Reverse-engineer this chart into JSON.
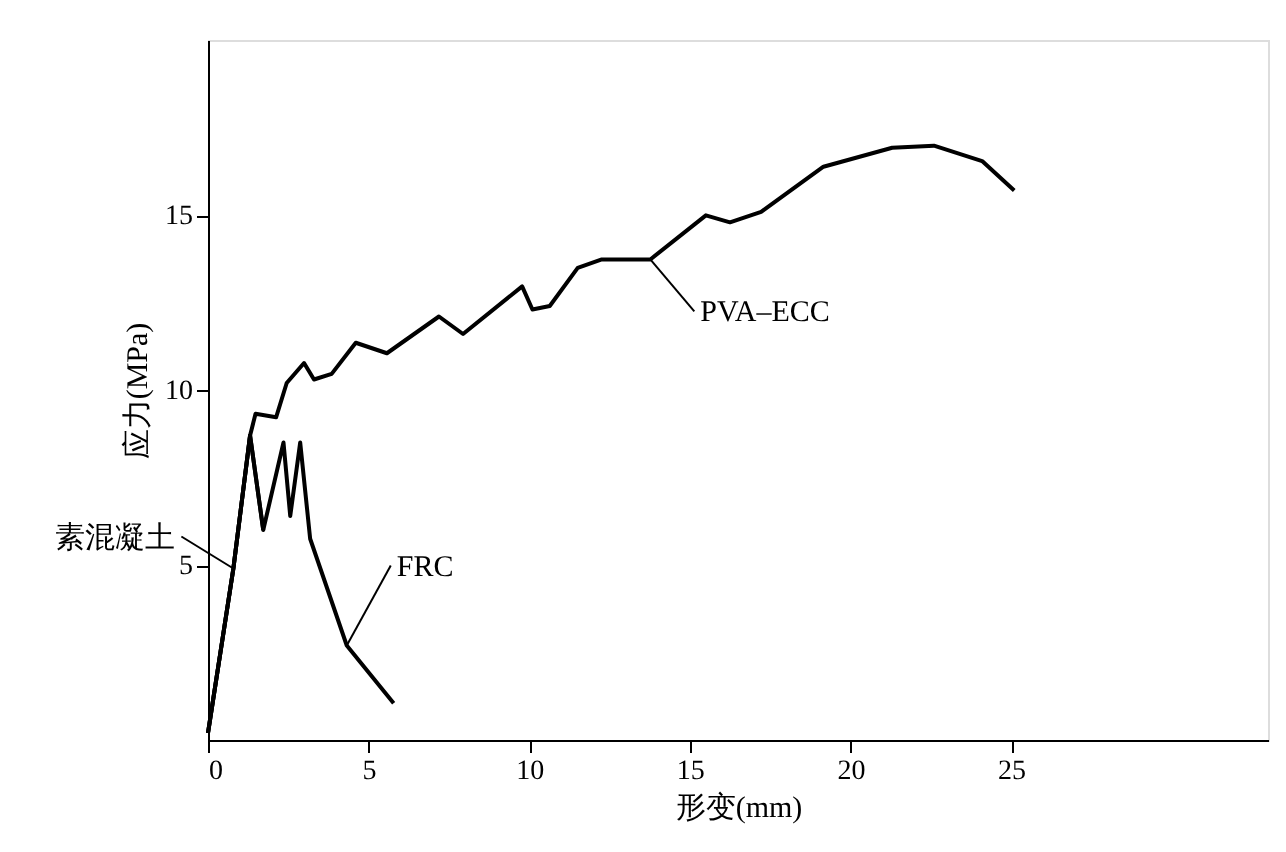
{
  "chart_data": {
    "type": "line",
    "xlabel": "形变(mm)",
    "ylabel": "应力(MPa)",
    "xlim": [
      0,
      33
    ],
    "ylim": [
      0,
      20
    ],
    "xticks": [
      0,
      5,
      10,
      15,
      20,
      25
    ],
    "yticks": [
      5,
      10,
      15
    ],
    "grid": false,
    "marker": "none",
    "line_style": "solid",
    "series": [
      {
        "name": "素混凝土",
        "color": "#000000",
        "x": [
          0,
          0.79,
          1.31,
          1.72
        ],
        "values": [
          0.2,
          4.9,
          8.7,
          6.0
        ]
      },
      {
        "name": "FRC",
        "color": "#000000",
        "x": [
          0,
          0.79,
          1.31,
          1.72,
          2.35,
          2.56,
          2.87,
          3.18,
          4.32,
          5.78
        ],
        "values": [
          0.2,
          4.9,
          8.7,
          6.0,
          8.5,
          6.4,
          8.5,
          5.75,
          2.7,
          1.05
        ]
      },
      {
        "name": "PVA–ECC",
        "color": "#000000",
        "x": [
          0,
          0.79,
          1.31,
          1.48,
          2.12,
          2.45,
          2.99,
          3.3,
          3.85,
          4.6,
          5.57,
          7.19,
          7.94,
          9.78,
          10.1,
          10.64,
          11.51,
          12.26,
          13.77,
          15.5,
          16.25,
          17.22,
          19.16,
          21.3,
          22.6,
          24.1,
          25.1
        ],
        "values": [
          0.2,
          4.9,
          8.7,
          9.32,
          9.22,
          10.2,
          10.77,
          10.3,
          10.46,
          11.35,
          11.05,
          12.1,
          11.6,
          12.96,
          12.3,
          12.4,
          13.49,
          13.73,
          13.73,
          14.99,
          14.79,
          15.09,
          16.38,
          16.92,
          16.98,
          16.54,
          15.7
        ]
      }
    ]
  }
}
